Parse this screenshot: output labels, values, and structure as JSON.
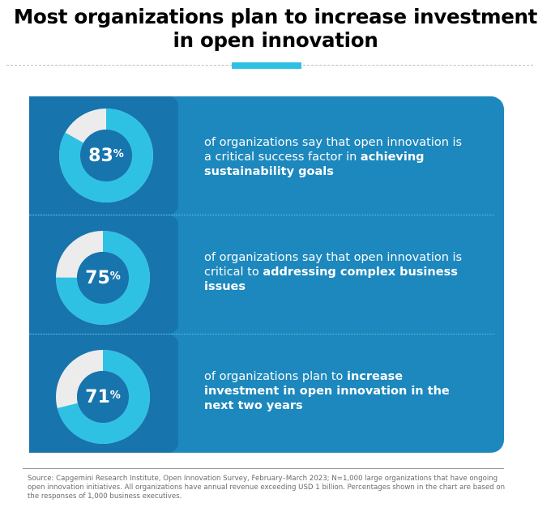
{
  "title": {
    "line1": "Most organizations plan to increase investment",
    "line2": "in open innovation"
  },
  "colors": {
    "panel": "#1c88bd",
    "cell": "#1774ad",
    "ring_fill": "#2fc1e4",
    "ring_rest": "#ececec",
    "accent": "#2fc1e4"
  },
  "chart_data": {
    "type": "pie",
    "unit": "%",
    "items": [
      {
        "value": 83,
        "label": "83",
        "text_plain": "of organizations say that open innovation is a critical success factor in ",
        "text_bold": "achieving sustainability goals"
      },
      {
        "value": 75,
        "label": "75",
        "text_plain": "of organizations say that open innovation is critical to ",
        "text_bold": "addressing complex business issues"
      },
      {
        "value": 71,
        "label": "71",
        "text_plain": "of organizations plan to ",
        "text_bold": "increase investment in open innovation in the next two years"
      }
    ]
  },
  "source": "Source: Capgemini Research Institute, Open Innovation Survey, February–March 2023; N=1,000 large organizations that have ongoing open innovation initiatives. All organizations have annual revenue exceeding USD 1 billion. Percentages shown in the chart are based on the responses of 1,000 business executives."
}
